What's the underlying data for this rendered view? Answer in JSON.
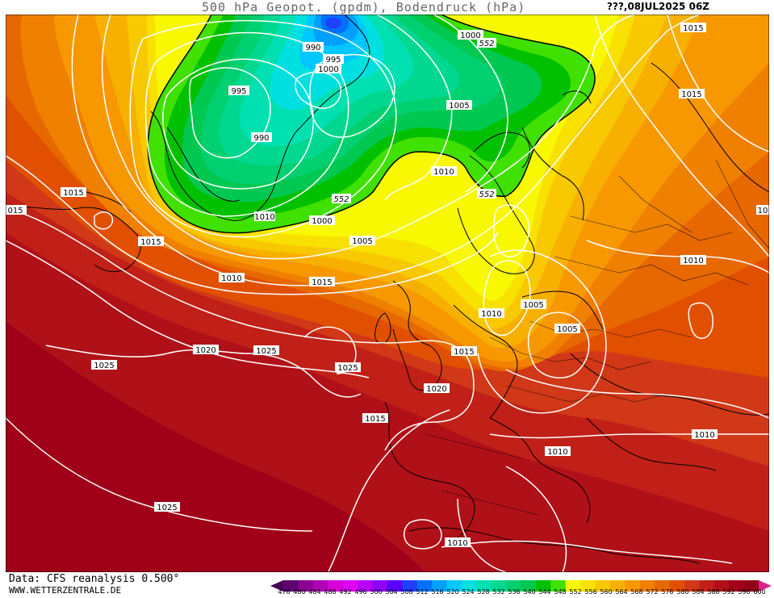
{
  "header": {
    "title": "500 hPa Geopot. (gpdm), Bodendruck (hPa)",
    "date": "???,08JUL2025 06Z"
  },
  "footer": {
    "data_source": "Data: CFS reanalysis 0.500°",
    "website": "WWW.WETTERZENTRALE.DE"
  },
  "legend": {
    "ticks": [
      "476",
      "480",
      "484",
      "488",
      "492",
      "496",
      "500",
      "504",
      "508",
      "512",
      "516",
      "520",
      "524",
      "528",
      "532",
      "536",
      "540",
      "544",
      "548",
      "552",
      "556",
      "560",
      "564",
      "568",
      "572",
      "576",
      "580",
      "584",
      "588",
      "592",
      "596",
      "600"
    ],
    "colors": [
      "#5e0070",
      "#8a0094",
      "#b200b4",
      "#d800d8",
      "#e000f0",
      "#b800f8",
      "#9000ff",
      "#5a00ff",
      "#2040ff",
      "#0070ff",
      "#00a0ff",
      "#00c8ff",
      "#00e0e0",
      "#00e0b0",
      "#00d890",
      "#00d070",
      "#00c850",
      "#00c000",
      "#40e000",
      "#f8f800",
      "#f8e000",
      "#f8c800",
      "#f8b000",
      "#f89800",
      "#f08000",
      "#e86800",
      "#e05000",
      "#d03818",
      "#c02018",
      "#b01018",
      "#a00018",
      "#900018"
    ]
  },
  "map_labels": {
    "isobars": [
      "990",
      "995",
      "1000",
      "990",
      "995",
      "1000",
      "1005",
      "1000",
      "1010",
      "1015",
      "1005",
      "1010",
      "1015",
      "1010",
      "1015",
      "1010",
      "1015",
      "1020",
      "1025",
      "1025",
      "1025",
      "1020",
      "1015",
      "1005",
      "1005",
      "1010",
      "1015",
      "1010",
      "1010",
      "1010",
      "1025",
      "015",
      "1015",
      "10",
      "1010"
    ],
    "geopot_552": [
      "552",
      "552",
      "552"
    ]
  }
}
